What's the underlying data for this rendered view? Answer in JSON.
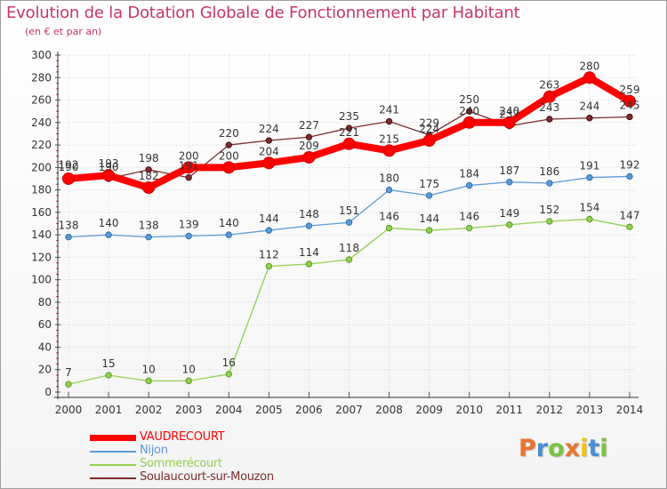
{
  "chart_data": {
    "type": "line",
    "title": "Evolution de la Dotation Globale de Fonctionnement par Habitant",
    "subtitle": "(en € et par an)",
    "x": [
      2000,
      2001,
      2002,
      2003,
      2004,
      2005,
      2006,
      2007,
      2008,
      2009,
      2010,
      2011,
      2012,
      2013,
      2014
    ],
    "ylim": [
      0,
      300
    ],
    "yticks": [
      0,
      20,
      40,
      60,
      80,
      100,
      120,
      140,
      160,
      180,
      200,
      220,
      240,
      260,
      280,
      300
    ],
    "grid": true,
    "series": [
      {
        "name": "VAUDRECOURT",
        "color": "#ff0000",
        "values": [
          190,
          193,
          182,
          200,
          200,
          204,
          209,
          221,
          215,
          224,
          240,
          240,
          263,
          280,
          259
        ]
      },
      {
        "name": "Nijon",
        "color": "#5b9bd5",
        "values": [
          138,
          140,
          138,
          139,
          140,
          144,
          148,
          151,
          180,
          175,
          184,
          187,
          186,
          191,
          192
        ]
      },
      {
        "name": "Sommerécourt",
        "color": "#92d050",
        "values": [
          7,
          15,
          10,
          10,
          16,
          112,
          114,
          118,
          146,
          144,
          146,
          149,
          152,
          154,
          147
        ]
      },
      {
        "name": "Soulaucourt-sur-Mouzon",
        "color": "#7b2c2c",
        "values": [
          192,
          190,
          198,
          191,
          220,
          224,
          227,
          235,
          241,
          229,
          250,
          237,
          243,
          244,
          245
        ]
      }
    ]
  },
  "legend": {
    "items": [
      {
        "label": "VAUDRECOURT",
        "color": "#ff0000"
      },
      {
        "label": "Nijon",
        "color": "#5b9bd5"
      },
      {
        "label": "Sommerécourt",
        "color": "#92d050"
      },
      {
        "label": "Soulaucourt-sur-Mouzon",
        "color": "#7b2c2c"
      }
    ]
  },
  "logo": {
    "text": "Proxiti",
    "colors": [
      "#e8742f",
      "#4a8fd0",
      "#7cc242",
      "#e8742f",
      "#f2c200",
      "#4a8fd0",
      "#7cc242"
    ]
  }
}
